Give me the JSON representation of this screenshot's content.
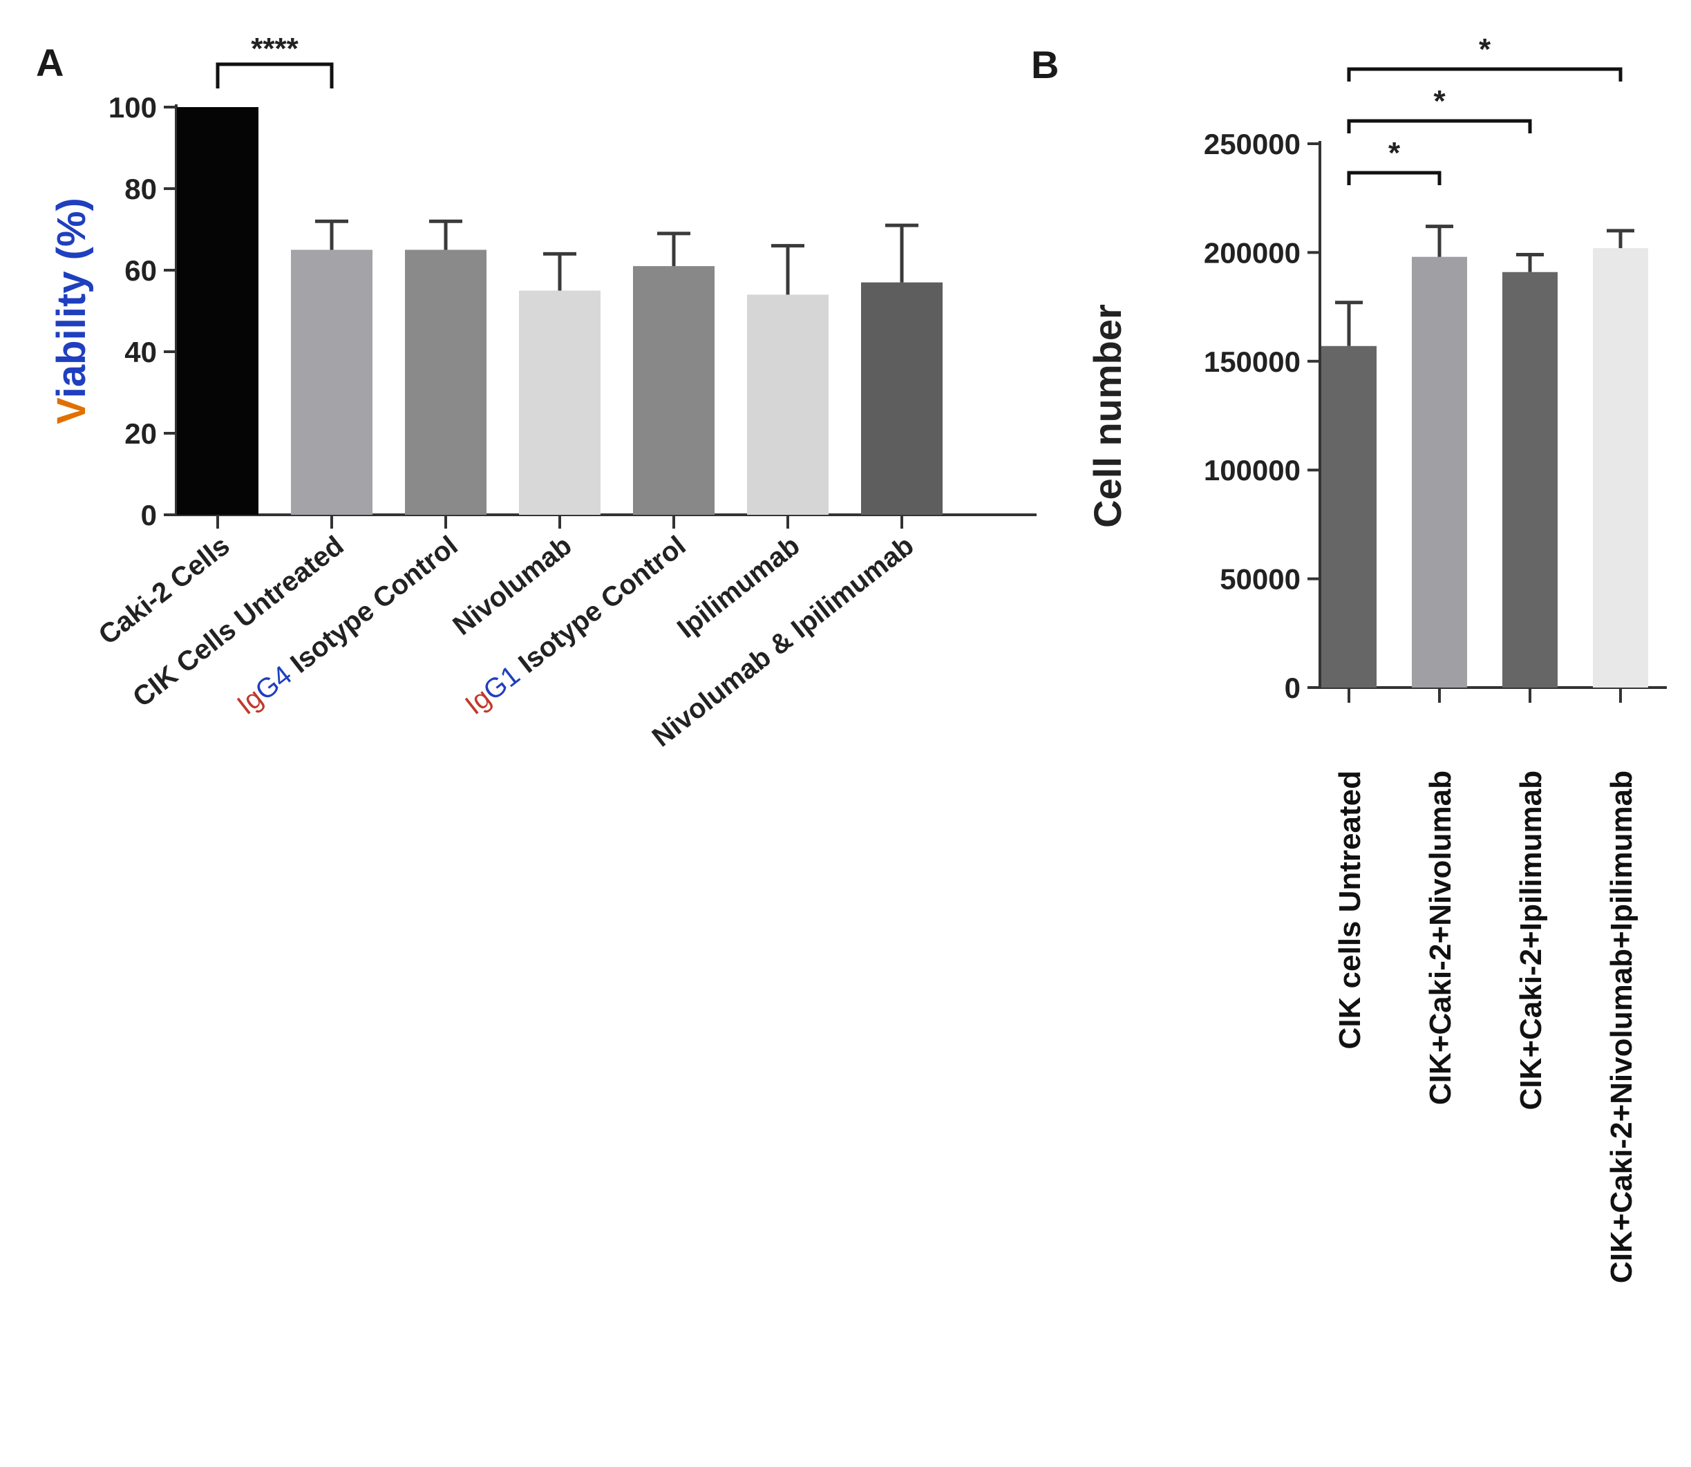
{
  "chart_data": [
    {
      "panel": "A",
      "type": "bar",
      "ylabel": "Viability (%)",
      "ylim": [
        0,
        100
      ],
      "yticks": [
        0,
        20,
        40,
        60,
        80,
        100
      ],
      "categories": [
        {
          "label": "Caki-2 Cells",
          "prefix": ""
        },
        {
          "label": "CIK Cells Untreated",
          "prefix": ""
        },
        {
          "label": " Isotype Control",
          "prefix": "IgG4"
        },
        {
          "label": "Nivolumab",
          "prefix": ""
        },
        {
          "label": " Isotype Control",
          "prefix": "IgG1"
        },
        {
          "label": "Ipilimumab",
          "prefix": ""
        },
        {
          "label": "Nivolumab & Ipilimumab",
          "prefix": ""
        }
      ],
      "values": [
        100,
        65,
        65,
        55,
        61,
        54,
        57
      ],
      "errors": [
        0,
        7,
        7,
        9,
        8,
        12,
        14
      ],
      "colors": [
        "#050505",
        "#a3a3a8",
        "#8a8a8a",
        "#d8d8d8",
        "#888888",
        "#d6d6d6",
        "#5e5e5e"
      ],
      "significance": [
        {
          "from": 0,
          "to": 1,
          "label": "****"
        }
      ]
    },
    {
      "panel": "B",
      "type": "bar",
      "ylabel": "Cell number",
      "ylim": [
        0,
        250000
      ],
      "yticks": [
        0,
        50000,
        100000,
        150000,
        200000,
        250000
      ],
      "categories": [
        "CIK cells Untreated",
        "CIK+Caki-2+Nivolumab",
        "CIK+Caki-2+Ipilimumab",
        "CIK+Caki-2+Nivolumab+Ipilimumab"
      ],
      "values": [
        157000,
        198000,
        191000,
        202000
      ],
      "errors": [
        20000,
        14000,
        8000,
        8000
      ],
      "colors": [
        "#666666",
        "#a0a0a4",
        "#666666",
        "#e8e8e8"
      ],
      "significance": [
        {
          "from": 0,
          "to": 1,
          "label": "*"
        },
        {
          "from": 0,
          "to": 2,
          "label": "*"
        },
        {
          "from": 0,
          "to": 3,
          "label": "*"
        }
      ]
    }
  ],
  "colors": {
    "ylabel_a_main": "#1f3fbf",
    "ylabel_a_accent": "#e07000",
    "prefix_a": "#c0392b",
    "prefix_b": "#1f3fbf"
  }
}
